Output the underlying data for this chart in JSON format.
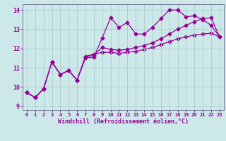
{
  "xlabel": "Windchill (Refroidissement éolien,°C)",
  "background_color": "#cce8e8",
  "grid_color": "#aacccc",
  "line_color": "#990099",
  "markersize": 2.5,
  "linewidth": 0.9,
  "xlim": [
    -0.5,
    23.5
  ],
  "ylim": [
    8.8,
    14.3
  ],
  "yticks": [
    9,
    10,
    11,
    12,
    13,
    14
  ],
  "xticks": [
    0,
    1,
    2,
    3,
    4,
    5,
    6,
    7,
    8,
    9,
    10,
    11,
    12,
    13,
    14,
    15,
    16,
    17,
    18,
    19,
    20,
    21,
    22,
    23
  ],
  "series1_x": [
    0,
    1,
    2,
    3,
    4,
    5,
    6,
    7,
    8,
    9,
    10,
    11,
    12,
    13,
    14,
    15,
    16,
    17,
    18,
    19,
    20,
    21,
    22,
    23
  ],
  "series1_y": [
    9.7,
    9.45,
    9.9,
    11.3,
    10.65,
    10.85,
    10.35,
    11.5,
    11.55,
    12.55,
    13.6,
    13.1,
    13.35,
    12.75,
    12.75,
    13.1,
    13.55,
    14.0,
    14.0,
    13.65,
    13.7,
    13.5,
    13.2,
    12.6
  ],
  "series2_x": [
    0,
    1,
    2,
    3,
    4,
    5,
    6,
    7,
    8,
    9,
    10,
    11,
    12,
    13,
    14,
    15,
    16,
    17,
    18,
    19,
    20,
    21,
    22,
    23
  ],
  "series2_y": [
    9.7,
    9.45,
    9.9,
    11.3,
    10.65,
    10.85,
    10.35,
    11.55,
    11.65,
    12.05,
    11.95,
    11.9,
    11.95,
    12.05,
    12.15,
    12.3,
    12.5,
    12.75,
    13.0,
    13.2,
    13.4,
    13.55,
    13.6,
    12.6
  ],
  "series3_x": [
    0,
    1,
    2,
    3,
    4,
    5,
    6,
    7,
    8,
    9,
    10,
    11,
    12,
    13,
    14,
    15,
    16,
    17,
    18,
    19,
    20,
    21,
    22,
    23
  ],
  "series3_y": [
    9.7,
    9.45,
    9.9,
    11.3,
    10.65,
    10.85,
    10.35,
    11.6,
    11.7,
    11.8,
    11.8,
    11.75,
    11.8,
    11.85,
    11.95,
    12.05,
    12.2,
    12.35,
    12.5,
    12.6,
    12.7,
    12.75,
    12.8,
    12.6
  ]
}
